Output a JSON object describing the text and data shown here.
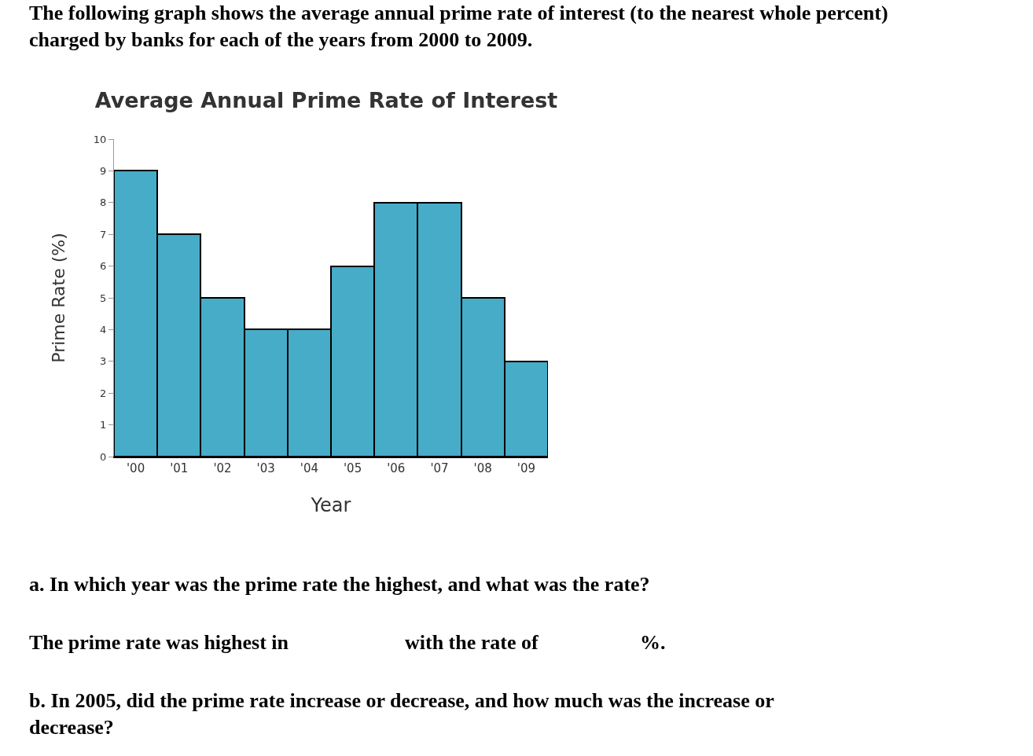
{
  "chart_data": {
    "type": "bar",
    "title": "Average Annual Prime Rate of Interest",
    "xlabel": "Year",
    "ylabel": "Prime Rate (%)",
    "categories": [
      "'00",
      "'01",
      "'02",
      "'03",
      "'04",
      "'05",
      "'06",
      "'07",
      "'08",
      "'09"
    ],
    "values": [
      9,
      7,
      5,
      4,
      4,
      6,
      8,
      8,
      5,
      3
    ],
    "color": "#46acc8",
    "ylim": [
      0,
      10
    ],
    "yticks": [
      0,
      1,
      2,
      3,
      4,
      5,
      6,
      7,
      8,
      9,
      10
    ],
    "annotations": [
      "The following graph shows the average annual prime rate of interest (to the nearest whole percent)\ncharged by banks for each of the years from 2000 to 2009.",
      "a. In which year was the prime rate the highest, and what was the rate?",
      "The prime rate was highest in",
      "with the rate of",
      "%.",
      "b. In 2005, did the prime rate increase or decrease, and how much was the increase or\ndecrease?"
    ]
  }
}
